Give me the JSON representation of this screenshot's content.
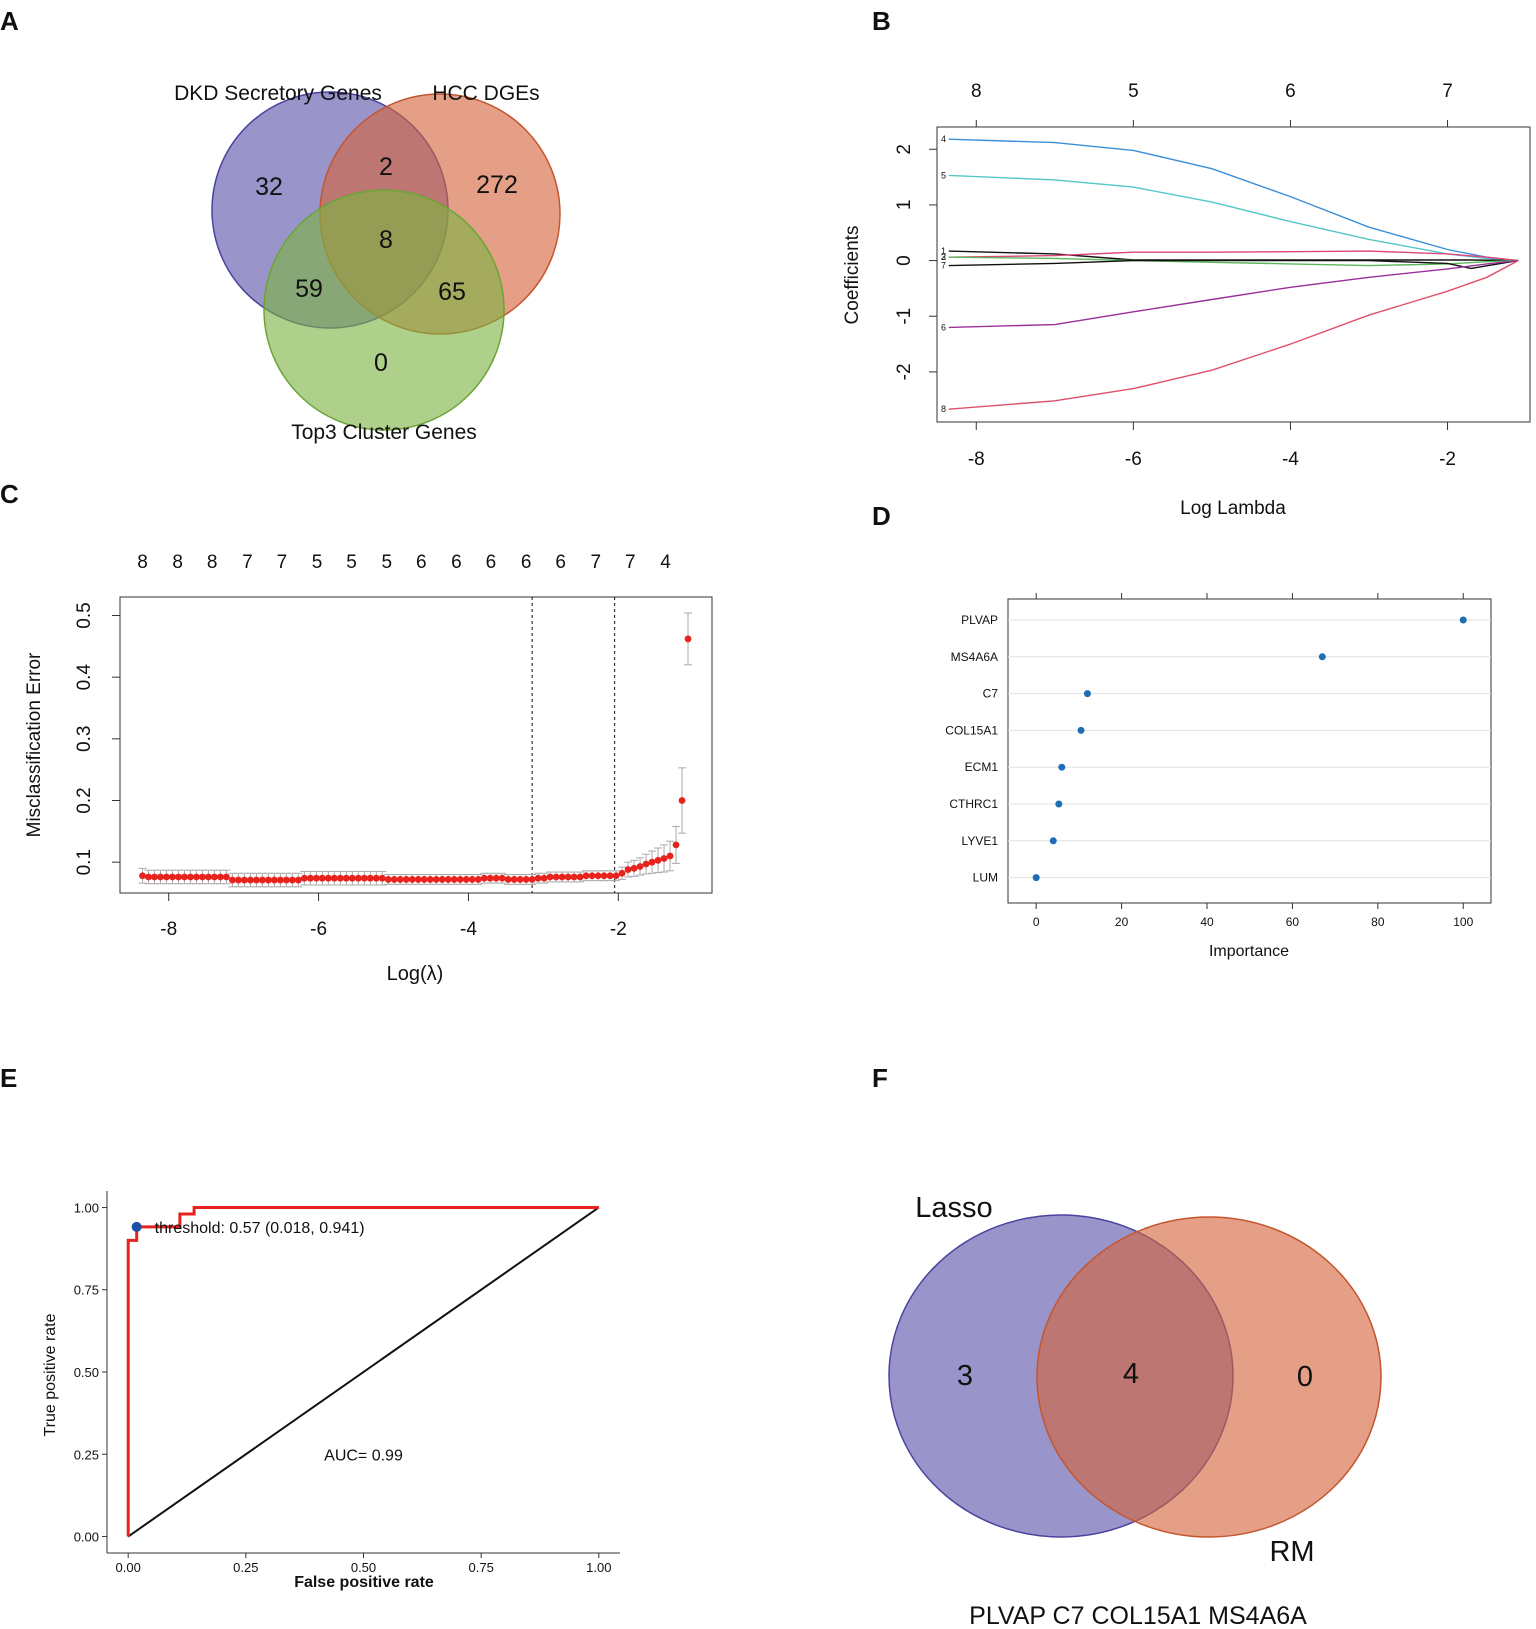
{
  "panels": {
    "A": {
      "label": "A",
      "type": "venn3",
      "sets": [
        {
          "name": "DKD Secretory Genes",
          "color": "#5b52aa"
        },
        {
          "name": "HCC DGEs",
          "color": "#d3643c"
        },
        {
          "name": "Top3 Cluster Genes",
          "color": "#7cb342"
        }
      ],
      "regions": {
        "dkd_only": "32",
        "dkd_hcc": "2",
        "hcc_only": "272",
        "all": "8",
        "dkd_top3": "59",
        "hcc_top3": "65",
        "top3_only": "0"
      }
    },
    "B": {
      "label": "B",
      "type": "line",
      "title": "",
      "xlabel": "Log Lambda",
      "ylabel": "Coefficients",
      "xlim": [
        -8.5,
        -0.95
      ],
      "ylim": [
        -2.9,
        2.4
      ],
      "x_ticks": [
        "-8",
        "-6",
        "-4",
        "-2"
      ],
      "x_tick_values": [
        -8,
        -6,
        -4,
        -2
      ],
      "y_ticks": [
        "-2",
        "-1",
        "0",
        "1",
        "2"
      ],
      "y_tick_values": [
        -2,
        -1,
        0,
        1,
        2
      ],
      "top_ticks": [
        "8",
        "5",
        "6",
        "7"
      ],
      "series": [
        {
          "name": "4",
          "color": "#3a8fd8",
          "x": [
            -8.35,
            -7,
            -6,
            -5,
            -4,
            -3,
            -2,
            -1.5,
            -1.1
          ],
          "y": [
            2.18,
            2.12,
            1.98,
            1.65,
            1.15,
            0.6,
            0.2,
            0.06,
            0.0
          ]
        },
        {
          "name": "5",
          "color": "#55c7c7",
          "x": [
            -8.35,
            -7,
            -6,
            -5,
            -4,
            -3,
            -2,
            -1.5,
            -1.1
          ],
          "y": [
            1.53,
            1.45,
            1.32,
            1.05,
            0.7,
            0.38,
            0.12,
            0.04,
            0.0
          ]
        },
        {
          "name": "1",
          "color": "#111111",
          "x": [
            -8.35,
            -7,
            -6,
            -5,
            -4,
            -3,
            -2,
            -1.7,
            -1.1
          ],
          "y": [
            0.17,
            0.12,
            0.01,
            0.01,
            0.01,
            0.01,
            0.01,
            0.01,
            0.0
          ]
        },
        {
          "name": "2",
          "color": "#e0457b",
          "x": [
            -8.35,
            -7,
            -6,
            -5,
            -4,
            -3,
            -2,
            -1.5,
            -1.1
          ],
          "y": [
            0.06,
            0.09,
            0.15,
            0.15,
            0.16,
            0.17,
            0.12,
            0.06,
            0.0
          ]
        },
        {
          "name": "3",
          "color": "#5cb85c",
          "x": [
            -8.35,
            -7,
            -6,
            -5,
            -4,
            -3,
            -2,
            -1.5,
            -1.1
          ],
          "y": [
            0.06,
            0.04,
            0.0,
            -0.03,
            -0.06,
            -0.09,
            -0.06,
            -0.02,
            0.0
          ]
        },
        {
          "name": "7",
          "color": "#111111",
          "x": [
            -8.35,
            -7,
            -6,
            -5,
            -4,
            -3,
            -2,
            -1.7,
            -1.1
          ],
          "y": [
            -0.09,
            -0.05,
            0.0,
            0.0,
            0.0,
            0.0,
            -0.05,
            -0.14,
            0.0
          ]
        },
        {
          "name": "6",
          "color": "#9b2f9b",
          "x": [
            -8.35,
            -7,
            -6,
            -5,
            -4,
            -3,
            -2,
            -1.5,
            -1.1
          ],
          "y": [
            -1.2,
            -1.15,
            -0.92,
            -0.7,
            -0.48,
            -0.3,
            -0.15,
            -0.06,
            0.0
          ]
        },
        {
          "name": "8",
          "color": "#e0506a",
          "x": [
            -8.35,
            -7,
            -6,
            -5,
            -4,
            -3,
            -2,
            -1.5,
            -1.1
          ],
          "y": [
            -2.67,
            -2.52,
            -2.3,
            -1.97,
            -1.5,
            -0.98,
            -0.55,
            -0.3,
            0.0
          ]
        }
      ]
    },
    "C": {
      "label": "C",
      "type": "scatter",
      "title": "",
      "xlabel": "Log(λ)",
      "ylabel": "Misclassification Error",
      "xlim": [
        -8.65,
        -0.75
      ],
      "ylim": [
        0.05,
        0.53
      ],
      "x_ticks": [
        "-8",
        "-6",
        "-4",
        "-2"
      ],
      "x_tick_values": [
        -8,
        -6,
        -4,
        -2
      ],
      "y_ticks": [
        "0.1",
        "0.2",
        "0.3",
        "0.4",
        "0.5"
      ],
      "y_tick_values": [
        0.1,
        0.2,
        0.3,
        0.4,
        0.5
      ],
      "top_ticks": [
        "8",
        "8",
        "8",
        "7",
        "7",
        "5",
        "5",
        "5",
        "6",
        "6",
        "6",
        "6",
        "6",
        "7",
        "7",
        "4"
      ],
      "top_tick_x": [
        -8.35,
        -7.88,
        -7.42,
        -6.95,
        -6.49,
        -6.02,
        -5.56,
        -5.09,
        -4.63,
        -4.16,
        -3.7,
        -3.23,
        -2.77,
        -2.3,
        -1.84,
        -1.37
      ],
      "vlines": [
        -3.15,
        -2.05
      ],
      "points": {
        "x": [
          -8.35,
          -8.27,
          -8.19,
          -8.11,
          -8.03,
          -7.95,
          -7.87,
          -7.79,
          -7.71,
          -7.63,
          -7.55,
          -7.47,
          -7.39,
          -7.31,
          -7.23,
          -7.15,
          -7.07,
          -6.99,
          -6.91,
          -6.83,
          -6.75,
          -6.67,
          -6.59,
          -6.51,
          -6.43,
          -6.35,
          -6.27,
          -6.19,
          -6.11,
          -6.03,
          -5.95,
          -5.87,
          -5.79,
          -5.71,
          -5.63,
          -5.55,
          -5.47,
          -5.39,
          -5.31,
          -5.23,
          -5.15,
          -5.07,
          -4.99,
          -4.91,
          -4.83,
          -4.75,
          -4.67,
          -4.59,
          -4.51,
          -4.43,
          -4.35,
          -4.27,
          -4.19,
          -4.11,
          -4.03,
          -3.95,
          -3.87,
          -3.79,
          -3.71,
          -3.63,
          -3.55,
          -3.47,
          -3.39,
          -3.31,
          -3.23,
          -3.15,
          -3.07,
          -2.99,
          -2.91,
          -2.83,
          -2.75,
          -2.67,
          -2.59,
          -2.51,
          -2.43,
          -2.35,
          -2.27,
          -2.19,
          -2.11,
          -2.03,
          -1.95,
          -1.87,
          -1.79,
          -1.71,
          -1.63,
          -1.55,
          -1.47,
          -1.39,
          -1.31,
          -1.23,
          -1.15,
          -1.07
        ],
        "y": [
          0.078,
          0.076,
          0.076,
          0.076,
          0.076,
          0.076,
          0.076,
          0.076,
          0.076,
          0.076,
          0.076,
          0.076,
          0.076,
          0.076,
          0.076,
          0.071,
          0.071,
          0.071,
          0.071,
          0.071,
          0.071,
          0.071,
          0.071,
          0.071,
          0.071,
          0.071,
          0.071,
          0.074,
          0.074,
          0.074,
          0.074,
          0.074,
          0.074,
          0.074,
          0.074,
          0.074,
          0.074,
          0.074,
          0.074,
          0.074,
          0.074,
          0.072,
          0.072,
          0.072,
          0.072,
          0.072,
          0.072,
          0.072,
          0.072,
          0.072,
          0.072,
          0.072,
          0.072,
          0.072,
          0.072,
          0.072,
          0.072,
          0.074,
          0.074,
          0.074,
          0.074,
          0.072,
          0.072,
          0.072,
          0.072,
          0.072,
          0.074,
          0.074,
          0.076,
          0.076,
          0.076,
          0.076,
          0.076,
          0.076,
          0.078,
          0.078,
          0.078,
          0.078,
          0.078,
          0.078,
          0.082,
          0.088,
          0.09,
          0.093,
          0.097,
          0.1,
          0.103,
          0.106,
          0.11,
          0.128,
          0.2,
          0.462
        ],
        "err": [
          0.012,
          0.011,
          0.011,
          0.011,
          0.011,
          0.011,
          0.011,
          0.011,
          0.011,
          0.011,
          0.011,
          0.011,
          0.011,
          0.011,
          0.011,
          0.011,
          0.011,
          0.011,
          0.011,
          0.011,
          0.011,
          0.011,
          0.011,
          0.011,
          0.011,
          0.011,
          0.011,
          0.011,
          0.011,
          0.011,
          0.011,
          0.011,
          0.011,
          0.011,
          0.011,
          0.011,
          0.011,
          0.011,
          0.011,
          0.011,
          0.011,
          0.008,
          0.008,
          0.008,
          0.008,
          0.008,
          0.008,
          0.008,
          0.008,
          0.008,
          0.008,
          0.008,
          0.008,
          0.008,
          0.008,
          0.008,
          0.008,
          0.008,
          0.008,
          0.008,
          0.008,
          0.008,
          0.008,
          0.008,
          0.008,
          0.008,
          0.008,
          0.008,
          0.008,
          0.008,
          0.008,
          0.008,
          0.008,
          0.008,
          0.008,
          0.008,
          0.008,
          0.008,
          0.008,
          0.008,
          0.01,
          0.012,
          0.013,
          0.014,
          0.016,
          0.018,
          0.02,
          0.022,
          0.024,
          0.03,
          0.053,
          0.042
        ]
      },
      "color": "#e8231d",
      "errcolor": "#aaaaaa"
    },
    "D": {
      "label": "D",
      "type": "scatter",
      "title": "",
      "xlabel": "Importance",
      "ylabel": "",
      "xlim": [
        -6.6,
        106.5
      ],
      "x_ticks": [
        "0",
        "20",
        "40",
        "60",
        "80",
        "100"
      ],
      "x_tick_values": [
        0,
        20,
        40,
        60,
        80,
        100
      ],
      "categories": [
        "PLVAP",
        "MS4A6A",
        "C7",
        "COL15A1",
        "ECM1",
        "CTHRC1",
        "LYVE1",
        "LUM"
      ],
      "values": [
        100,
        67,
        12,
        10.5,
        6,
        5.3,
        4,
        0
      ],
      "color": "#1f6eb5"
    },
    "E": {
      "label": "E",
      "type": "line",
      "title": "",
      "xlabel": "False positive rate",
      "ylabel": "True positive rate",
      "xlim": [
        -0.045,
        1.045
      ],
      "ylim": [
        -0.05,
        1.05
      ],
      "x_ticks": [
        "0.00",
        "0.25",
        "0.50",
        "0.75",
        "1.00"
      ],
      "x_tick_values": [
        0,
        0.25,
        0.5,
        0.75,
        1
      ],
      "y_ticks": [
        "0.00",
        "0.25",
        "0.50",
        "0.75",
        "1.00"
      ],
      "y_tick_values": [
        0,
        0.25,
        0.5,
        0.75,
        1
      ],
      "roc": {
        "x": [
          0,
          0,
          0.018,
          0.018,
          0.018,
          0.11,
          0.11,
          0.14,
          0.14,
          1
        ],
        "y": [
          0,
          0.9,
          0.9,
          0.92,
          0.941,
          0.941,
          0.98,
          0.98,
          1,
          1
        ]
      },
      "roc_color": "#e8231d",
      "diagonal": {
        "x": [
          0,
          1
        ],
        "y": [
          0,
          1
        ]
      },
      "threshold_point": {
        "x": 0.018,
        "y": 0.941
      },
      "threshold_label": "threshold: 0.57 (0.018, 0.941)",
      "auc_label": "AUC= 0.99",
      "auc_label_pos": {
        "x": 0.5,
        "y": 0.25
      }
    },
    "F": {
      "label": "F",
      "type": "venn2",
      "sets": [
        {
          "name": "Lasso",
          "color": "#5b52aa"
        },
        {
          "name": "RM",
          "color": "#d3643c"
        }
      ],
      "regions": {
        "lasso_only": "3",
        "both": "4",
        "rm_only": "0"
      },
      "footer": "PLVAP C7 COL15A1 MS4A6A"
    }
  },
  "chart_data": [
    {
      "type": "other",
      "title": "",
      "subtype": "venn3",
      "sets": [
        "DKD Secretory Genes",
        "HCC DGEs",
        "Top3 Cluster Genes"
      ],
      "regions": {
        "dkd_only": 32,
        "dkd_hcc": 2,
        "hcc_only": 272,
        "all": 8,
        "dkd_top3": 59,
        "hcc_top3": 65,
        "top3_only": 0
      }
    },
    {
      "type": "line",
      "title": "",
      "xlabel": "Log Lambda",
      "ylabel": "Coefficients",
      "xlim": [
        -8.5,
        -0.95
      ],
      "ylim": [
        -2.9,
        2.4
      ],
      "series_ref": "panels.B.series"
    },
    {
      "type": "scatter",
      "title": "",
      "xlabel": "Log(λ)",
      "ylabel": "Misclassification Error",
      "xlim": [
        -8.65,
        -0.75
      ],
      "ylim": [
        0.05,
        0.53
      ],
      "series_ref": "panels.C.points"
    },
    {
      "type": "scatter",
      "title": "",
      "xlabel": "Importance",
      "categories": [
        "PLVAP",
        "MS4A6A",
        "C7",
        "COL15A1",
        "ECM1",
        "CTHRC1",
        "LYVE1",
        "LUM"
      ],
      "values": [
        100,
        67,
        12,
        10.5,
        6,
        5.3,
        4,
        0
      ]
    },
    {
      "type": "line",
      "title": "",
      "xlabel": "False positive rate",
      "ylabel": "True positive rate",
      "xlim": [
        -0.045,
        1.045
      ],
      "ylim": [
        -0.05,
        1.05
      ],
      "annotation": "AUC= 0.99"
    },
    {
      "type": "other",
      "title": "",
      "subtype": "venn2",
      "sets": [
        "Lasso",
        "RM"
      ],
      "regions": {
        "lasso_only": 3,
        "both": 4,
        "rm_only": 0
      }
    }
  ]
}
